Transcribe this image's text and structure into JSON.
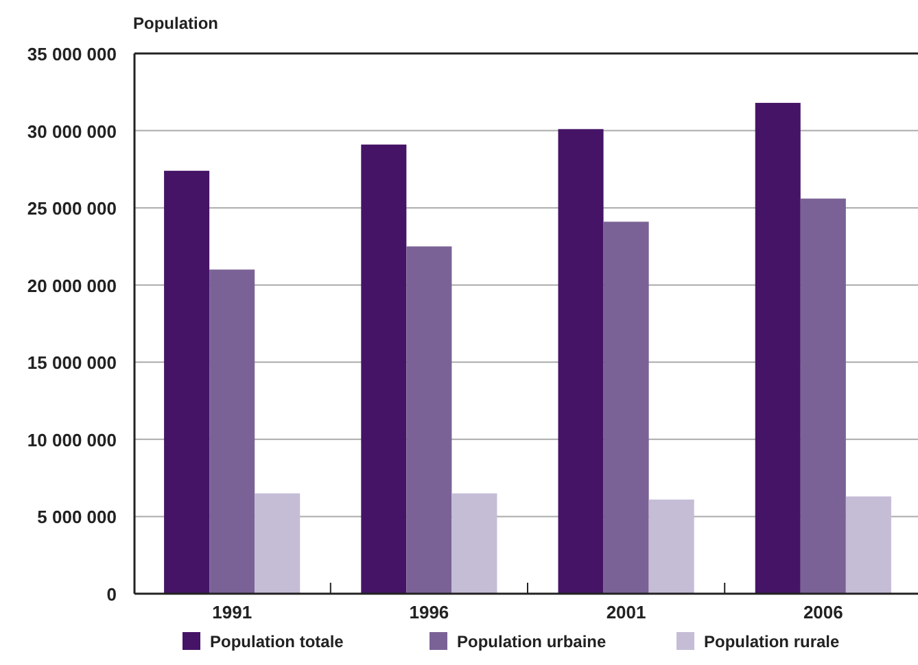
{
  "chart_data": {
    "type": "bar",
    "ylabel": "Population",
    "categories": [
      "1991",
      "1996",
      "2001",
      "2006"
    ],
    "series": [
      {
        "name": "Population totale",
        "color": "#451466",
        "values": [
          27400000,
          29100000,
          30100000,
          31800000
        ]
      },
      {
        "name": "Population urbaine",
        "color": "#7a6296",
        "values": [
          21000000,
          22500000,
          24100000,
          25600000
        ]
      },
      {
        "name": "Population rurale",
        "color": "#c5bcd6",
        "values": [
          6500000,
          6500000,
          6100000,
          6300000
        ]
      }
    ],
    "ylim": [
      0,
      35000000
    ],
    "yticks": [
      {
        "value": 0,
        "label": "0"
      },
      {
        "value": 5000000,
        "label": "5 000 000"
      },
      {
        "value": 10000000,
        "label": "10 000 000"
      },
      {
        "value": 15000000,
        "label": "15 000 000"
      },
      {
        "value": 20000000,
        "label": "20 000 000"
      },
      {
        "value": 25000000,
        "label": "25 000 000"
      },
      {
        "value": 30000000,
        "label": "30 000 000"
      },
      {
        "value": 35000000,
        "label": "35 000 000"
      }
    ],
    "grid": "y",
    "legend": "bottom"
  }
}
